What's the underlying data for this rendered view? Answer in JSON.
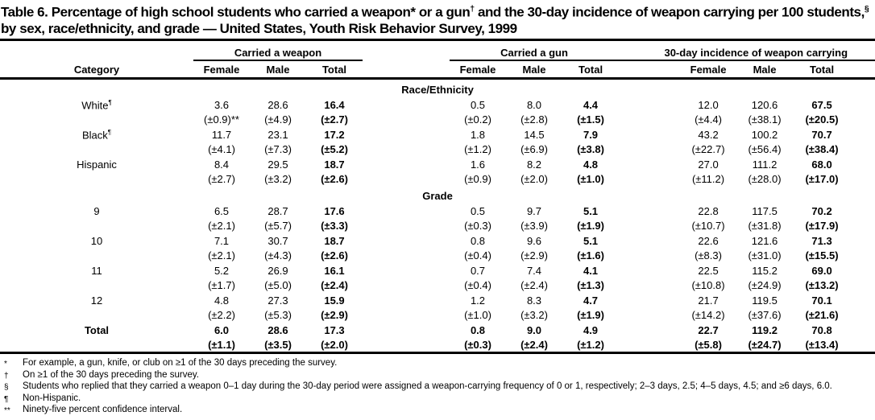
{
  "title": "Table 6. Percentage of high school students who carried a weapon* or a gun† and the 30-day incidence of weapon carrying per 100 students,§ by sex, race/ethnicity, and grade — United States, Youth Risk Behavior Survey, 1999",
  "table": {
    "category_header": "Category",
    "groups": [
      {
        "label": "Carried a weapon",
        "columns": [
          "Female",
          "Male",
          "Total"
        ]
      },
      {
        "label": "Carried a gun",
        "columns": [
          "Female",
          "Male",
          "Total"
        ]
      },
      {
        "label": "30-day incidence of weapon carrying",
        "columns": [
          "Female",
          "Male",
          "Total"
        ]
      }
    ],
    "rows": [
      {
        "type": "section",
        "label": "Race/Ethnicity"
      },
      {
        "type": "data",
        "label": "White¶",
        "indent": true,
        "bold": false,
        "values": [
          "3.6",
          "28.6",
          "16.4",
          "0.5",
          "8.0",
          "4.4",
          "12.0",
          "120.6",
          "67.5"
        ],
        "ci": [
          "(±0.9)**",
          "(±4.9)",
          "(±2.7)",
          "(±0.2)",
          "(±2.8)",
          "(±1.5)",
          "(±4.4)",
          "(±38.1)",
          "(±20.5)"
        ]
      },
      {
        "type": "data",
        "label": "Black¶",
        "indent": true,
        "bold": false,
        "values": [
          "11.7",
          "23.1",
          "17.2",
          "1.8",
          "14.5",
          "7.9",
          "43.2",
          "100.2",
          "70.7"
        ],
        "ci": [
          "(±4.1)",
          "(±7.3)",
          "(±5.2)",
          "(±1.2)",
          "(±6.9)",
          "(±3.8)",
          "(±22.7)",
          "(±56.4)",
          "(±38.4)"
        ]
      },
      {
        "type": "data",
        "label": "Hispanic",
        "indent": true,
        "bold": false,
        "values": [
          "8.4",
          "29.5",
          "18.7",
          "1.6",
          "8.2",
          "4.8",
          "27.0",
          "111.2",
          "68.0"
        ],
        "ci": [
          "(±2.7)",
          "(±3.2)",
          "(±2.6)",
          "(±0.9)",
          "(±2.0)",
          "(±1.0)",
          "(±11.2)",
          "(±28.0)",
          "(±17.0)"
        ]
      },
      {
        "type": "section",
        "label": "Grade"
      },
      {
        "type": "data",
        "label": "9",
        "indent": true,
        "bold": false,
        "values": [
          "6.5",
          "28.7",
          "17.6",
          "0.5",
          "9.7",
          "5.1",
          "22.8",
          "117.5",
          "70.2"
        ],
        "ci": [
          "(±2.1)",
          "(±5.7)",
          "(±3.3)",
          "(±0.3)",
          "(±3.9)",
          "(±1.9)",
          "(±10.7)",
          "(±31.8)",
          "(±17.9)"
        ]
      },
      {
        "type": "data",
        "label": "10",
        "indent": true,
        "bold": false,
        "values": [
          "7.1",
          "30.7",
          "18.7",
          "0.8",
          "9.6",
          "5.1",
          "22.6",
          "121.6",
          "71.3"
        ],
        "ci": [
          "(±2.1)",
          "(±4.3)",
          "(±2.6)",
          "(±0.4)",
          "(±2.9)",
          "(±1.6)",
          "(±8.3)",
          "(±31.0)",
          "(±15.5)"
        ]
      },
      {
        "type": "data",
        "label": "11",
        "indent": true,
        "bold": false,
        "values": [
          "5.2",
          "26.9",
          "16.1",
          "0.7",
          "7.4",
          "4.1",
          "22.5",
          "115.2",
          "69.0"
        ],
        "ci": [
          "(±1.7)",
          "(±5.0)",
          "(±2.4)",
          "(±0.4)",
          "(±2.4)",
          "(±1.3)",
          "(±10.8)",
          "(±24.9)",
          "(±13.2)"
        ]
      },
      {
        "type": "data",
        "label": "12",
        "indent": true,
        "bold": false,
        "values": [
          "4.8",
          "27.3",
          "15.9",
          "1.2",
          "8.3",
          "4.7",
          "21.7",
          "119.5",
          "70.1"
        ],
        "ci": [
          "(±2.2)",
          "(±5.3)",
          "(±2.9)",
          "(±1.0)",
          "(±3.2)",
          "(±1.9)",
          "(±14.2)",
          "(±37.6)",
          "(±21.6)"
        ]
      },
      {
        "type": "data",
        "label": "Total",
        "indent": false,
        "bold": true,
        "values": [
          "6.0",
          "28.6",
          "17.3",
          "0.8",
          "9.0",
          "4.9",
          "22.7",
          "119.2",
          "70.8"
        ],
        "ci": [
          "(±1.1)",
          "(±3.5)",
          "(±2.0)",
          "(±0.3)",
          "(±2.4)",
          "(±1.2)",
          "(±5.8)",
          "(±24.7)",
          "(±13.4)"
        ]
      }
    ]
  },
  "footnotes": [
    {
      "symbol": "*",
      "text": "For example, a gun, knife, or club on ≥1 of the 30 days preceding the survey."
    },
    {
      "symbol": "†",
      "text": "On ≥1 of the 30 days preceding the survey."
    },
    {
      "symbol": "§",
      "text": "Students who replied that they carried a weapon 0–1 day during the 30-day period were assigned a weapon-carrying frequency of 0 or 1, respectively; 2–3 days, 2.5; 4–5 days, 4.5; and ≥6 days, 6.0."
    },
    {
      "symbol": "¶",
      "text": "Non-Hispanic."
    },
    {
      "symbol": "**",
      "text": "Ninety-five percent confidence interval."
    }
  ],
  "colors": {
    "ink": "#000000",
    "paper": "#ffffff"
  }
}
